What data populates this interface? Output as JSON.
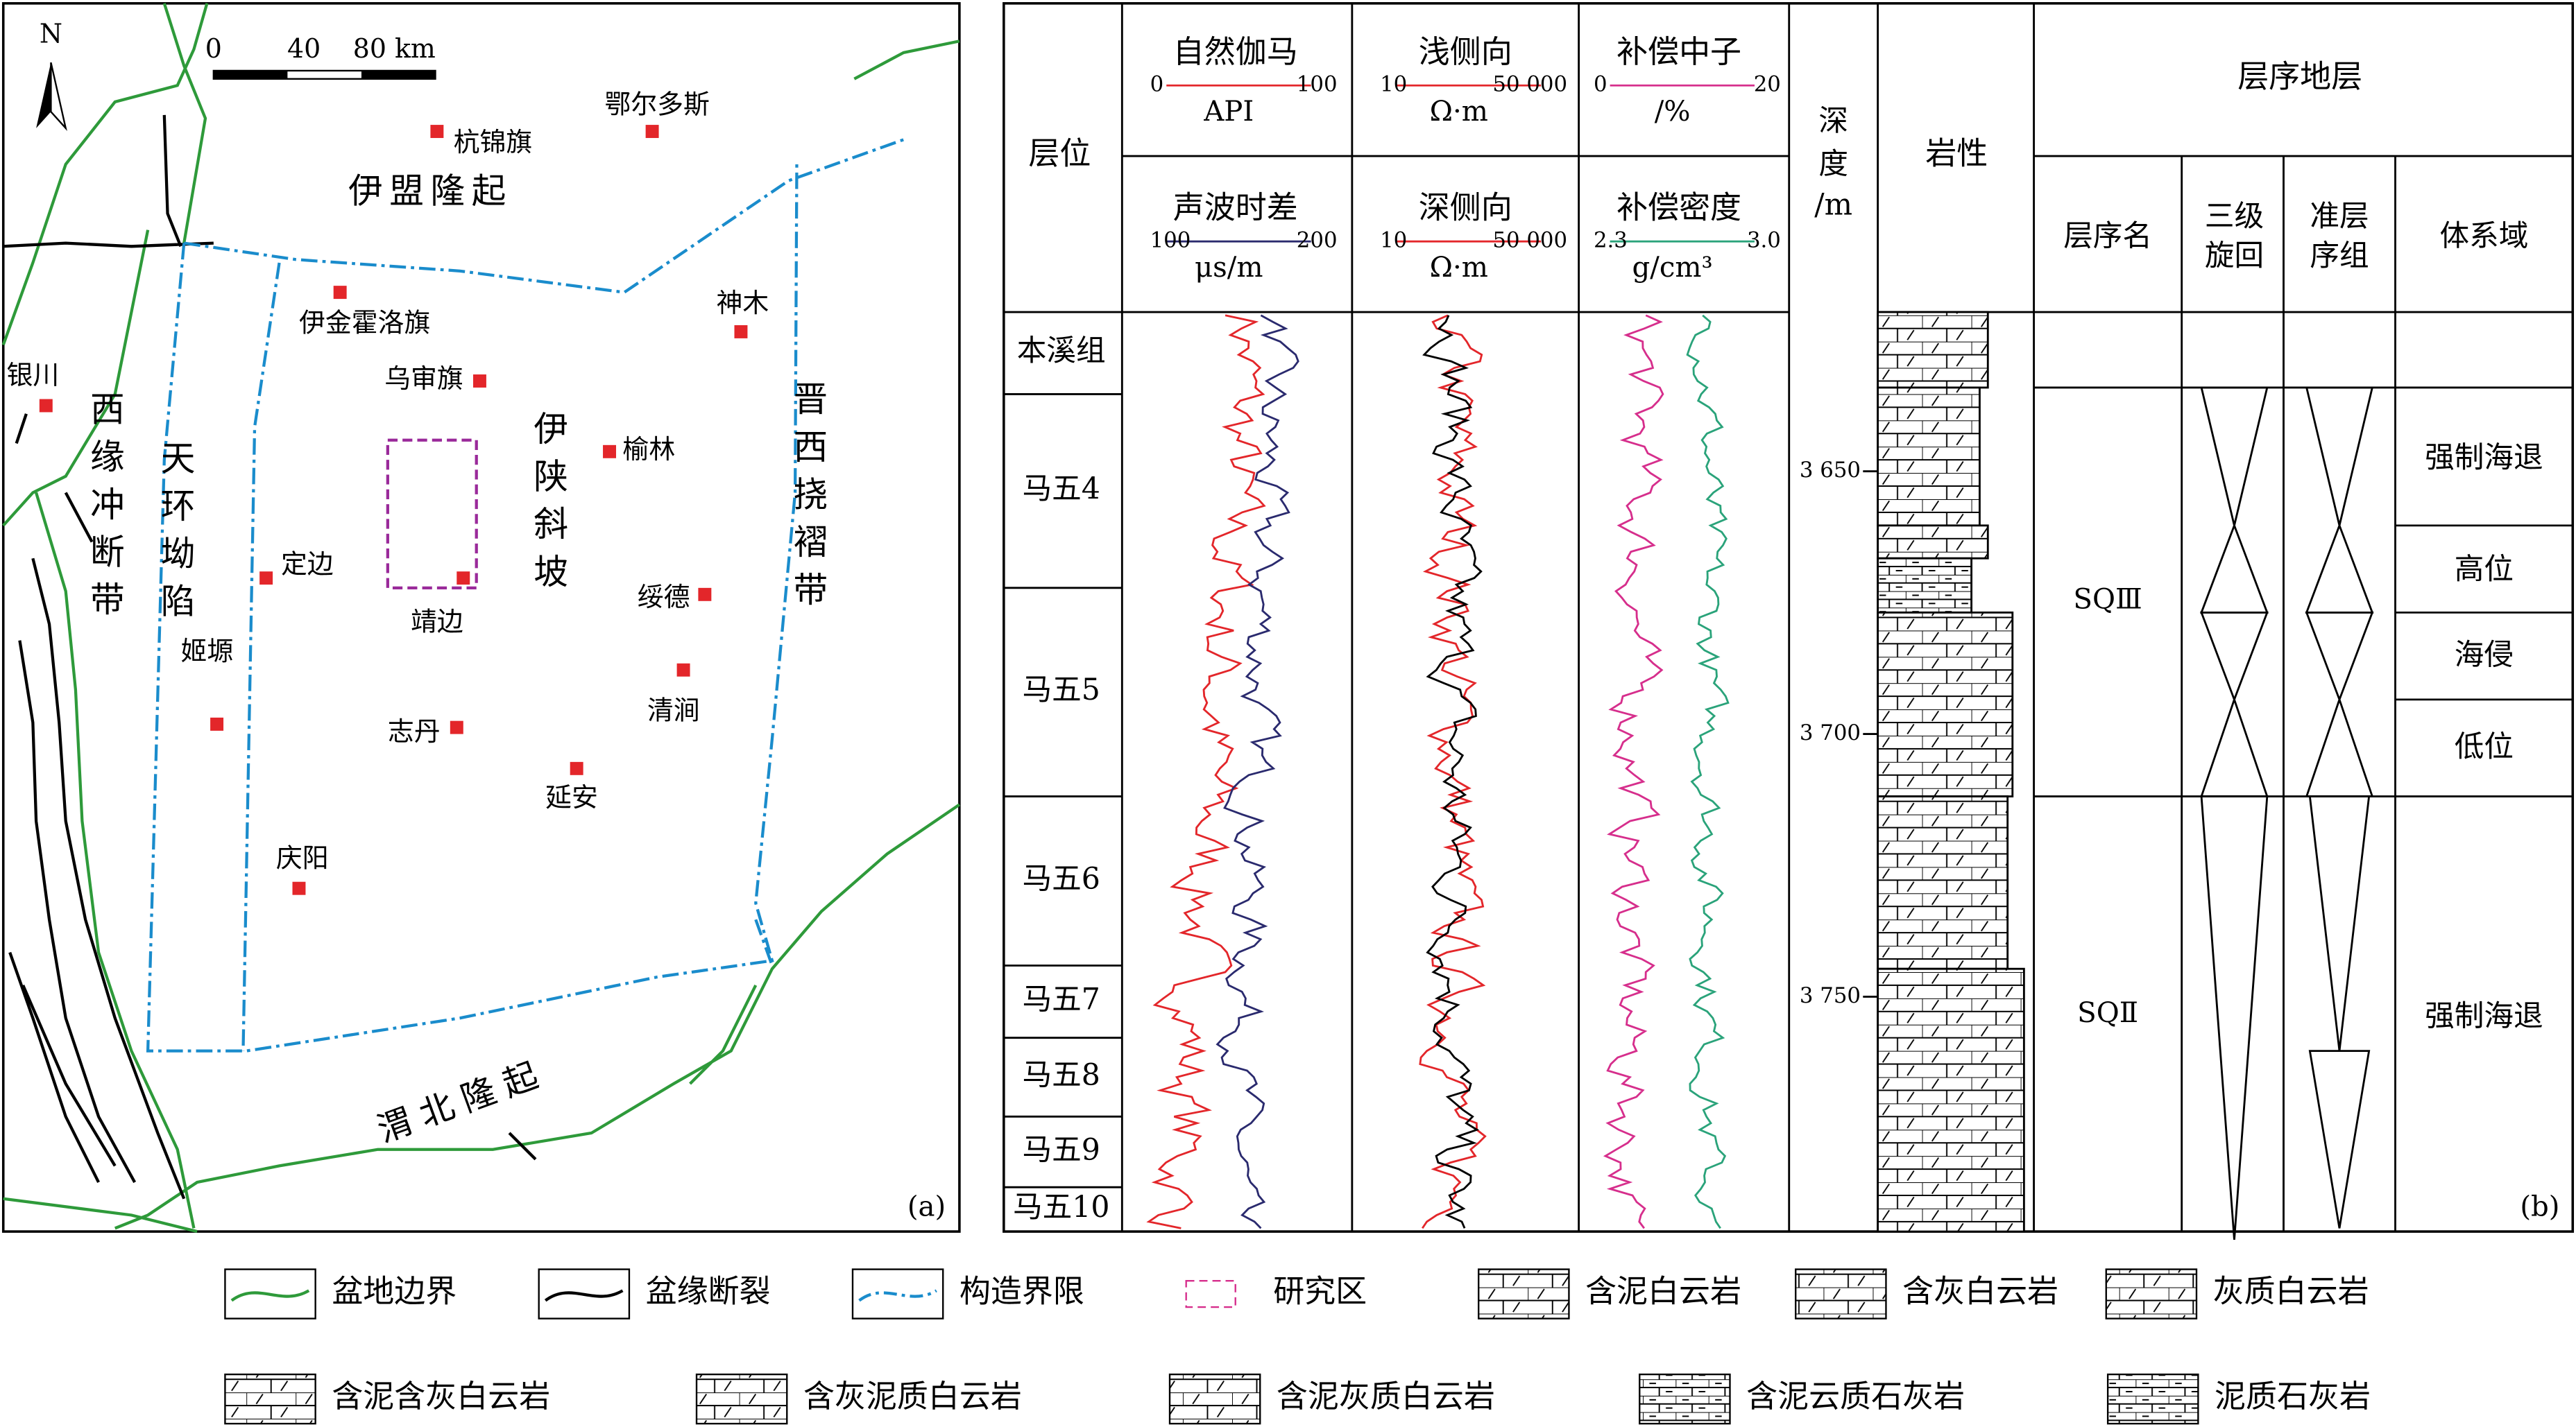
{
  "map": {
    "north": "N",
    "scale": [
      "0",
      "40",
      "80 km"
    ],
    "cities": [
      "杭锦旗",
      "鄂尔多斯",
      "伊金霍洛旗",
      "神木",
      "乌审旗",
      "银川",
      "榆林",
      "定边",
      "靖边",
      "绥德",
      "姬塬",
      "清涧",
      "志丹",
      "延安",
      "庆阳"
    ],
    "regions": [
      "伊盟隆起",
      "西缘冲断带",
      "天环坳陷",
      "伊陕斜坡",
      "晋西挠褶带",
      "渭北隆起"
    ],
    "panel": "(a)"
  },
  "log": {
    "layer_header": "层位",
    "curves": [
      {
        "name": "自然伽马",
        "min": "0",
        "max": "100",
        "unit": "API"
      },
      {
        "name": "声波时差",
        "min": "100",
        "max": "200",
        "unit": "μs/m"
      },
      {
        "name": "浅侧向",
        "min": "10",
        "max": "50 000",
        "unit": "Ω·m"
      },
      {
        "name": "深侧向",
        "min": "10",
        "max": "50 000",
        "unit": "Ω·m"
      },
      {
        "name": "补偿中子",
        "min": "0",
        "max": "20",
        "unit": "/%"
      },
      {
        "name": "补偿密度",
        "min": "2.3",
        "max": "3.0",
        "unit": "g/cm³"
      }
    ],
    "depth_header": [
      "深",
      "度",
      "/m"
    ],
    "lith_header": "岩性",
    "seq_header": "层序地层",
    "seq_sub": [
      "层序名",
      [
        "三级",
        "旋回"
      ],
      [
        "准层",
        "序组"
      ],
      "体系域"
    ],
    "formations": [
      "本溪组",
      "马五4",
      "马五5",
      "马五6",
      "马五7",
      "马五8",
      "马五9",
      "马五10"
    ],
    "depth_ticks": [
      "3 650",
      "3 700",
      "3 750"
    ],
    "sequences": [
      "SQⅢ",
      "SQⅡ"
    ],
    "tracts": [
      "强制海退",
      "高位",
      "海侵",
      "低位",
      "强制海退"
    ],
    "panel": "(b)"
  },
  "legend": [
    "盆地边界",
    "盆缘断裂",
    "构造界限",
    "研究区",
    "含泥白云岩",
    "含灰白云岩",
    "灰质白云岩",
    "含泥含灰白云岩",
    "含灰泥质白云岩",
    "含泥灰质白云岩",
    "含泥云质石灰岩",
    "泥质石灰岩"
  ]
}
